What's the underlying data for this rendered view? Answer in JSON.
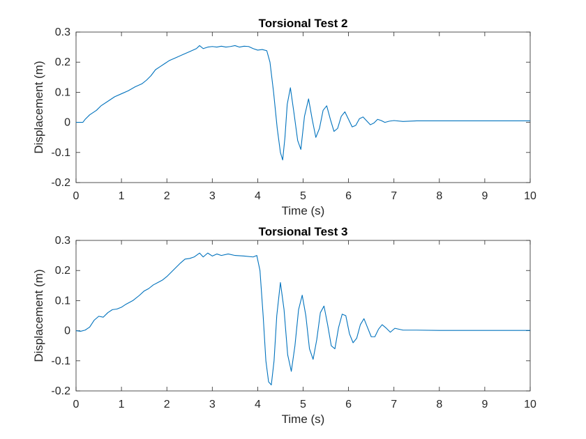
{
  "chart_data": [
    {
      "type": "line",
      "title": "Torsional Test 2",
      "xlabel": "Time (s)",
      "ylabel": "Displacement (m)",
      "xlim": [
        0,
        10
      ],
      "ylim": [
        -0.2,
        0.3
      ],
      "xticks": [
        "0",
        "1",
        "2",
        "3",
        "4",
        "5",
        "6",
        "7",
        "8",
        "9",
        "10"
      ],
      "yticks": [
        "-0.2",
        "-0.1",
        "0",
        "0.1",
        "0.2",
        "0.3"
      ],
      "grid": false,
      "color": "#0072BD",
      "x": [
        0,
        0.15,
        0.2,
        0.3,
        0.45,
        0.55,
        0.7,
        0.85,
        1.0,
        1.15,
        1.3,
        1.45,
        1.55,
        1.65,
        1.75,
        1.85,
        1.95,
        2.05,
        2.2,
        2.35,
        2.5,
        2.65,
        2.72,
        2.8,
        2.9,
        3.0,
        3.1,
        3.2,
        3.3,
        3.4,
        3.5,
        3.6,
        3.7,
        3.8,
        3.9,
        4.0,
        4.1,
        4.2,
        4.27,
        4.35,
        4.43,
        4.5,
        4.55,
        4.6,
        4.65,
        4.72,
        4.8,
        4.88,
        4.95,
        5.03,
        5.12,
        5.2,
        5.28,
        5.36,
        5.44,
        5.52,
        5.6,
        5.68,
        5.76,
        5.84,
        5.92,
        6.0,
        6.08,
        6.16,
        6.24,
        6.32,
        6.4,
        6.48,
        6.56,
        6.64,
        6.72,
        6.8,
        6.9,
        7.0,
        7.2,
        7.5,
        8.0,
        9.0,
        10.0
      ],
      "y": [
        0,
        0,
        0.01,
        0.025,
        0.04,
        0.055,
        0.07,
        0.085,
        0.095,
        0.105,
        0.118,
        0.128,
        0.14,
        0.155,
        0.175,
        0.185,
        0.195,
        0.205,
        0.215,
        0.225,
        0.235,
        0.245,
        0.255,
        0.245,
        0.25,
        0.252,
        0.25,
        0.253,
        0.25,
        0.252,
        0.255,
        0.25,
        0.253,
        0.252,
        0.245,
        0.24,
        0.242,
        0.238,
        0.2,
        0.1,
        -0.02,
        -0.1,
        -0.125,
        -0.05,
        0.06,
        0.115,
        0.03,
        -0.06,
        -0.09,
        0.02,
        0.078,
        0.01,
        -0.05,
        -0.02,
        0.04,
        0.055,
        0.01,
        -0.03,
        -0.02,
        0.02,
        0.035,
        0.01,
        -0.015,
        -0.01,
        0.012,
        0.018,
        0.005,
        -0.008,
        -0.002,
        0.01,
        0.006,
        0,
        0.004,
        0.006,
        0.003,
        0.005,
        0.005,
        0.005,
        0.005
      ]
    },
    {
      "type": "line",
      "title": "Torsional Test 3",
      "xlabel": "Time (s)",
      "ylabel": "Displacement (m)",
      "xlim": [
        0,
        10
      ],
      "ylim": [
        -0.2,
        0.3
      ],
      "xticks": [
        "0",
        "1",
        "2",
        "3",
        "4",
        "5",
        "6",
        "7",
        "8",
        "9",
        "10"
      ],
      "yticks": [
        "-0.2",
        "-0.1",
        "0",
        "0.1",
        "0.2",
        "0.3"
      ],
      "grid": false,
      "color": "#0072BD",
      "x": [
        0,
        0.1,
        0.2,
        0.3,
        0.4,
        0.5,
        0.6,
        0.7,
        0.8,
        0.9,
        1.0,
        1.1,
        1.25,
        1.4,
        1.5,
        1.6,
        1.7,
        1.8,
        1.9,
        2.0,
        2.1,
        2.2,
        2.3,
        2.4,
        2.5,
        2.6,
        2.72,
        2.8,
        2.9,
        3.0,
        3.1,
        3.2,
        3.35,
        3.5,
        3.7,
        3.9,
        3.98,
        4.05,
        4.12,
        4.18,
        4.24,
        4.3,
        4.36,
        4.42,
        4.5,
        4.58,
        4.66,
        4.74,
        4.82,
        4.9,
        4.98,
        5.06,
        5.14,
        5.22,
        5.3,
        5.38,
        5.46,
        5.54,
        5.62,
        5.7,
        5.78,
        5.86,
        5.94,
        6.02,
        6.1,
        6.18,
        6.26,
        6.34,
        6.42,
        6.5,
        6.58,
        6.66,
        6.74,
        6.82,
        6.92,
        7.02,
        7.2,
        7.5,
        8.0,
        9.0,
        10.0
      ],
      "y": [
        0,
        -0.002,
        0.002,
        0.012,
        0.035,
        0.048,
        0.045,
        0.06,
        0.07,
        0.072,
        0.078,
        0.088,
        0.1,
        0.118,
        0.132,
        0.14,
        0.152,
        0.16,
        0.168,
        0.18,
        0.195,
        0.21,
        0.225,
        0.238,
        0.24,
        0.245,
        0.258,
        0.245,
        0.258,
        0.248,
        0.255,
        0.25,
        0.255,
        0.25,
        0.248,
        0.245,
        0.25,
        0.2,
        0.05,
        -0.1,
        -0.17,
        -0.18,
        -0.1,
        0.05,
        0.16,
        0.07,
        -0.08,
        -0.135,
        -0.05,
        0.07,
        0.118,
        0.05,
        -0.06,
        -0.095,
        -0.03,
        0.06,
        0.082,
        0.02,
        -0.05,
        -0.06,
        0.01,
        0.055,
        0.05,
        -0.01,
        -0.04,
        -0.025,
        0.02,
        0.04,
        0.01,
        -0.02,
        -0.02,
        0.005,
        0.02,
        0.01,
        -0.005,
        0.008,
        0.002,
        0.002,
        0.001,
        0.001,
        0.001
      ]
    }
  ]
}
